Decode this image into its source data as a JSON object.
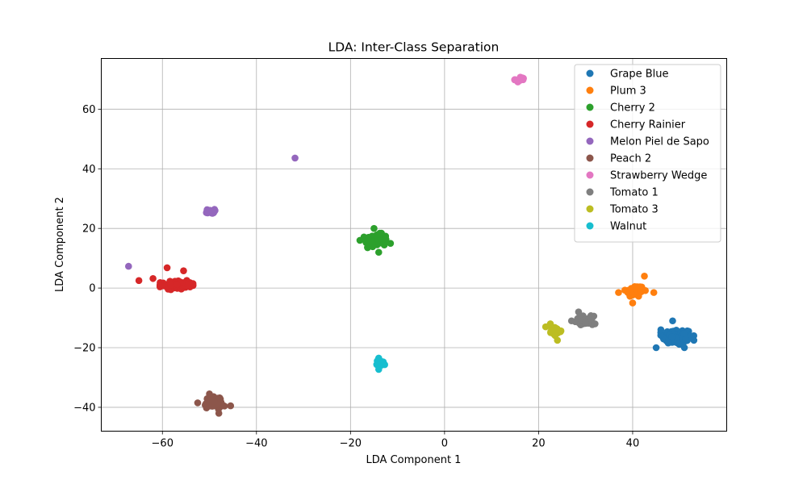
{
  "chart_data": {
    "type": "scatter",
    "title": "LDA: Inter-Class Separation",
    "xlabel": "LDA Component 1",
    "ylabel": "LDA Component 2",
    "xlim": [
      -73,
      60
    ],
    "ylim": [
      -48,
      77
    ],
    "xticks": [
      -60,
      -40,
      -20,
      0,
      20,
      40
    ],
    "yticks": [
      -40,
      -20,
      0,
      20,
      40,
      60
    ],
    "xtick_labels": [
      "−60",
      "−40",
      "−20",
      "0",
      "20",
      "40"
    ],
    "ytick_labels": [
      "−40",
      "−20",
      "0",
      "20",
      "40",
      "60"
    ],
    "grid": true,
    "legend_position": "top-right",
    "series": [
      {
        "name": "Grape Blue",
        "color": "#1f77b4",
        "cluster": {
          "center": [
            49.5,
            -16.5
          ],
          "spread": [
            3.2,
            2.8
          ],
          "n": 110
        },
        "points": [
          [
            45,
            -20
          ],
          [
            48.5,
            -11
          ],
          [
            53,
            -16
          ],
          [
            46,
            -14
          ],
          [
            51,
            -20
          ]
        ]
      },
      {
        "name": "Plum 3",
        "color": "#ff7f0e",
        "cluster": {
          "center": [
            40.5,
            -1
          ],
          "spread": [
            2.0,
            2.0
          ],
          "n": 55
        },
        "points": [
          [
            37,
            -1.5
          ],
          [
            44.5,
            -1.5
          ],
          [
            42.5,
            4
          ],
          [
            40,
            -5
          ]
        ]
      },
      {
        "name": "Cherry 2",
        "color": "#2ca02c",
        "cluster": {
          "center": [
            -14.5,
            16
          ],
          "spread": [
            2.4,
            2.2
          ],
          "n": 75
        },
        "points": [
          [
            -18,
            16
          ],
          [
            -11.5,
            15
          ],
          [
            -15,
            20
          ],
          [
            -14,
            12
          ]
        ]
      },
      {
        "name": "Cherry Rainier",
        "color": "#d62728",
        "cluster": {
          "center": [
            -57,
            1
          ],
          "spread": [
            3.2,
            1.4
          ],
          "n": 95
        },
        "points": [
          [
            -65,
            2.5
          ],
          [
            -59,
            6.8
          ],
          [
            -55.5,
            5.8
          ],
          [
            -53.5,
            1.5
          ],
          [
            -62,
            3.2
          ]
        ]
      },
      {
        "name": "Melon Piel de Sapo",
        "color": "#9467bd",
        "cluster": {
          "center": [
            -49.8,
            25.7
          ],
          "spread": [
            0.9,
            0.7
          ],
          "n": 18
        },
        "points": [
          [
            -67.2,
            7.3
          ],
          [
            -31.8,
            43.6
          ]
        ]
      },
      {
        "name": "Peach 2",
        "color": "#8c564b",
        "cluster": {
          "center": [
            -49,
            -38.5
          ],
          "spread": [
            2.0,
            1.9
          ],
          "n": 60
        },
        "points": [
          [
            -52.5,
            -38.5
          ],
          [
            -45.5,
            -39.5
          ],
          [
            -50,
            -35.5
          ],
          [
            -48,
            -42
          ]
        ]
      },
      {
        "name": "Strawberry Wedge",
        "color": "#e377c2",
        "cluster": {
          "center": [
            16,
            70
          ],
          "spread": [
            1.0,
            0.8
          ],
          "n": 18
        },
        "points": []
      },
      {
        "name": "Tomato 1",
        "color": "#7f7f7f",
        "cluster": {
          "center": [
            29.8,
            -10.8
          ],
          "spread": [
            1.8,
            1.4
          ],
          "n": 45
        },
        "points": [
          [
            28.5,
            -8
          ],
          [
            32,
            -12
          ],
          [
            27,
            -11
          ]
        ]
      },
      {
        "name": "Tomato 3",
        "color": "#bcbd22",
        "cluster": {
          "center": [
            23.5,
            -14.5
          ],
          "spread": [
            1.3,
            1.3
          ],
          "n": 35
        },
        "points": [
          [
            21.5,
            -13
          ],
          [
            24,
            -17.5
          ],
          [
            22.5,
            -12
          ]
        ]
      },
      {
        "name": "Walnut",
        "color": "#17becf",
        "cluster": {
          "center": [
            -13.5,
            -25.2
          ],
          "spread": [
            0.9,
            0.9
          ],
          "n": 25
        },
        "points": [
          [
            -14,
            -27.3
          ],
          [
            -14,
            -23.5
          ]
        ]
      }
    ]
  }
}
